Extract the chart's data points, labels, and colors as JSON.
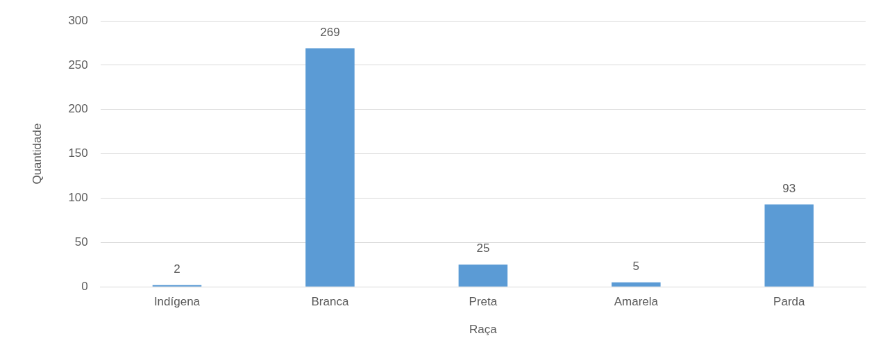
{
  "chart_data": {
    "type": "bar",
    "xlabel": "Raça",
    "ylabel": "Quantidade",
    "categories": [
      "Indígena",
      "Branca",
      "Preta",
      "Amarela",
      "Parda"
    ],
    "values": [
      2,
      269,
      25,
      5,
      93
    ],
    "color": "#5b9bd5",
    "ylim": [
      0,
      300
    ],
    "yticks": [
      0,
      50,
      100,
      150,
      200,
      250,
      300
    ],
    "grid": "y",
    "data_labels": true,
    "legend": false
  }
}
